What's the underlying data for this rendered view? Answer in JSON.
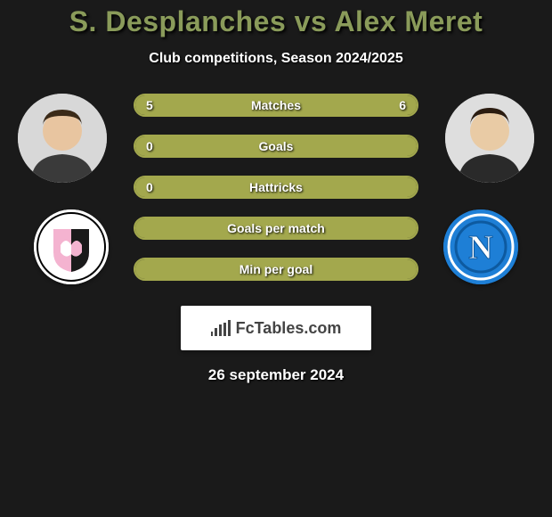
{
  "title": "S. Desplanches vs Alex Meret",
  "subtitle": "Club competitions, Season 2024/2025",
  "accent_color": "#a3a84d",
  "title_color": "#8a9b5a",
  "background_color": "#1a1a1a",
  "player_left": {
    "name": "S. Desplanches",
    "avatar_skin": "#e8c5a0",
    "club_badge_bg": "#ffffff",
    "club_badge_accent1": "#f4b3d0",
    "club_badge_accent2": "#1a1a1a"
  },
  "player_right": {
    "name": "Alex Meret",
    "avatar_skin": "#e9cba5",
    "club_badge_bg": "#1e7fd6",
    "club_badge_ring": "#ffffff",
    "club_badge_letter": "N"
  },
  "stats": [
    {
      "label": "Matches",
      "left_value": "5",
      "right_value": "6",
      "left_fill_pct": 45,
      "right_fill_pct": 55
    },
    {
      "label": "Goals",
      "left_value": "0",
      "right_value": "",
      "left_fill_pct": 100,
      "right_fill_pct": 0
    },
    {
      "label": "Hattricks",
      "left_value": "0",
      "right_value": "",
      "left_fill_pct": 100,
      "right_fill_pct": 0
    },
    {
      "label": "Goals per match",
      "left_value": "",
      "right_value": "",
      "left_fill_pct": 100,
      "right_fill_pct": 0
    },
    {
      "label": "Min per goal",
      "left_value": "",
      "right_value": "",
      "left_fill_pct": 100,
      "right_fill_pct": 0
    }
  ],
  "watermark_text": "FcTables.com",
  "footer_date": "26 september 2024"
}
